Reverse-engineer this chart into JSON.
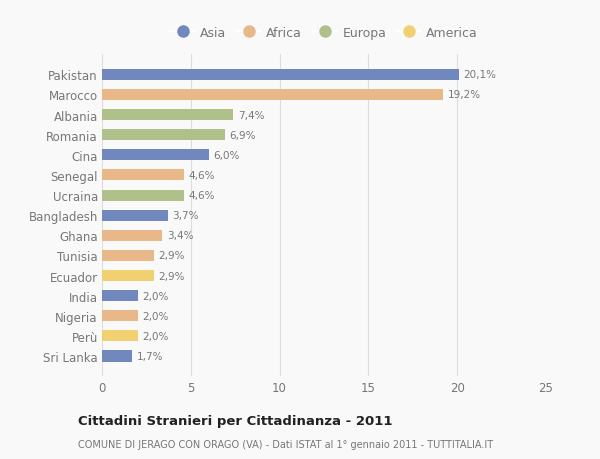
{
  "countries": [
    "Pakistan",
    "Marocco",
    "Albania",
    "Romania",
    "Cina",
    "Senegal",
    "Ucraina",
    "Bangladesh",
    "Ghana",
    "Tunisia",
    "Ecuador",
    "India",
    "Nigeria",
    "Perù",
    "Sri Lanka"
  ],
  "values": [
    20.1,
    19.2,
    7.4,
    6.9,
    6.0,
    4.6,
    4.6,
    3.7,
    3.4,
    2.9,
    2.9,
    2.0,
    2.0,
    2.0,
    1.7
  ],
  "continents": [
    "Asia",
    "Africa",
    "Europa",
    "Europa",
    "Asia",
    "Africa",
    "Europa",
    "Asia",
    "Africa",
    "Africa",
    "America",
    "Asia",
    "Africa",
    "America",
    "Asia"
  ],
  "continent_colors": {
    "Asia": "#7088be",
    "Africa": "#e8b888",
    "Europa": "#afc08a",
    "America": "#f0d070"
  },
  "legend_order": [
    "Asia",
    "Africa",
    "Europa",
    "America"
  ],
  "xlim": [
    0,
    25
  ],
  "xticks": [
    0,
    5,
    10,
    15,
    20,
    25
  ],
  "title": "Cittadini Stranieri per Cittadinanza - 2011",
  "subtitle": "COMUNE DI JERAGO CON ORAGO (VA) - Dati ISTAT al 1° gennaio 2011 - TUTTITALIA.IT",
  "bar_height": 0.55,
  "background_color": "#f9f9f9",
  "grid_color": "#dddddd",
  "label_color": "#777777",
  "title_color": "#222222",
  "subtitle_color": "#777777"
}
